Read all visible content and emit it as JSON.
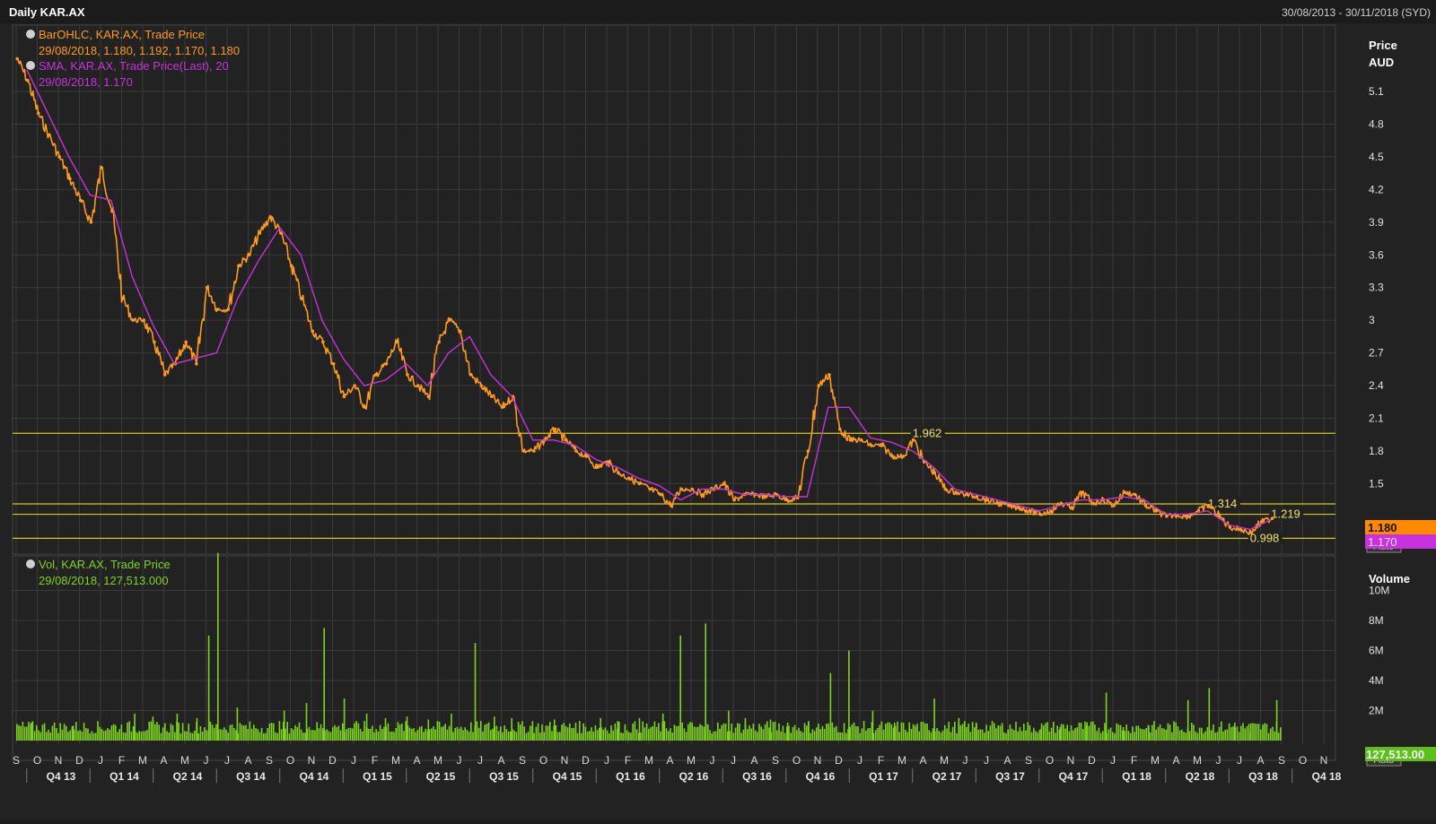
{
  "header": {
    "title": "Daily KAR.AX",
    "date_range": "30/08/2013 - 30/11/2018 (SYD)"
  },
  "price_axis": {
    "title": "Price",
    "unit": "AUD",
    "ticks": [
      "5.1",
      "4.8",
      "4.5",
      "4.2",
      "3.9",
      "3.6",
      "3.3",
      "3",
      "2.7",
      "2.4",
      "2.1",
      "1.8",
      "1.5"
    ],
    "last_price_tag": "1.180",
    "sma_tag": "1.170",
    "auto_label": "Auto"
  },
  "volume_axis": {
    "title": "Volume",
    "ticks": [
      "10M",
      "8M",
      "6M",
      "4M",
      "2M"
    ],
    "last_volume_tag": "127,513.00",
    "auto_label": "Auto"
  },
  "legend": {
    "ohlc_name": "BarOHLC, KAR.AX, Trade Price",
    "ohlc_values": "29/08/2018, 1.180, 1.192, 1.170, 1.180",
    "sma_name": "SMA, KAR.AX, Trade Price(Last),  20",
    "sma_values": "29/08/2018, 1.170",
    "vol_name": "Vol, KAR.AX, Trade Price",
    "vol_values": "29/08/2018, 127,513.000"
  },
  "colors": {
    "background": "#222222",
    "grid": "#3a3a3a",
    "price": "#ff9a1e",
    "sma": "#c832dc",
    "volume": "#7ed321",
    "level_line": "#d9c81a",
    "text": "#e0e0e0"
  },
  "time_axis": {
    "months": [
      "S",
      "O",
      "N",
      "D",
      "J",
      "F",
      "M",
      "A",
      "M",
      "J",
      "J",
      "A",
      "S",
      "O",
      "N",
      "D",
      "J",
      "F",
      "M",
      "A",
      "M",
      "J",
      "J",
      "A",
      "S",
      "O",
      "N",
      "D",
      "J",
      "F",
      "M",
      "A",
      "M",
      "J",
      "J",
      "A",
      "S",
      "O",
      "N",
      "D",
      "J",
      "F",
      "M",
      "A",
      "M",
      "J",
      "J",
      "A",
      "S",
      "O",
      "N",
      "D",
      "J",
      "F",
      "M",
      "A",
      "M",
      "J",
      "J",
      "A",
      "S",
      "O",
      "N"
    ],
    "quarters": [
      "Q4 13",
      "Q1 14",
      "Q2 14",
      "Q3 14",
      "Q4 14",
      "Q1 15",
      "Q2 15",
      "Q3 15",
      "Q4 15",
      "Q1 16",
      "Q2 16",
      "Q3 16",
      "Q4 16",
      "Q1 17",
      "Q2 17",
      "Q3 17",
      "Q4 17",
      "Q1 18",
      "Q2 18",
      "Q3 18",
      "Q4 18"
    ]
  },
  "chart_data": {
    "type": "line",
    "price_panel": {
      "x_label": "",
      "y_label": "Price AUD",
      "ylim": [
        0.9,
        5.5
      ],
      "grid": true,
      "horizontal_levels": [
        {
          "value": 1.962,
          "label": "1.962",
          "label_date": "2017-03"
        },
        {
          "value": 1.314,
          "label": "1.314",
          "label_date": "2018-05"
        },
        {
          "value": 1.219,
          "label": "1.219",
          "label_date": "2018-08"
        },
        {
          "value": 0.998,
          "label": "0.998",
          "label_date": "2018-07"
        }
      ],
      "series": [
        {
          "name": "BarOHLC, KAR.AX, Trade Price",
          "x": [
            "2013-09",
            "2013-09",
            "2013-10",
            "2013-10",
            "2013-11",
            "2013-11",
            "2013-12",
            "2013-12",
            "2014-01",
            "2014-01",
            "2014-02",
            "2014-02",
            "2014-03",
            "2014-03",
            "2014-04",
            "2014-04",
            "2014-05",
            "2014-05",
            "2014-06",
            "2014-06",
            "2014-07",
            "2014-07",
            "2014-08",
            "2014-08",
            "2014-09",
            "2014-09",
            "2014-10",
            "2014-10",
            "2014-11",
            "2014-11",
            "2014-12",
            "2014-12",
            "2015-01",
            "2015-01",
            "2015-02",
            "2015-02",
            "2015-03",
            "2015-03",
            "2015-04",
            "2015-04",
            "2015-05",
            "2015-05",
            "2015-06",
            "2015-06",
            "2015-07",
            "2015-07",
            "2015-08",
            "2015-08",
            "2015-09",
            "2015-09",
            "2015-10",
            "2015-10",
            "2015-11",
            "2015-11",
            "2015-12",
            "2015-12",
            "2016-01",
            "2016-01",
            "2016-02",
            "2016-02",
            "2016-03",
            "2016-03",
            "2016-04",
            "2016-04",
            "2016-05",
            "2016-05",
            "2016-06",
            "2016-06",
            "2016-07",
            "2016-07",
            "2016-08",
            "2016-08",
            "2016-09",
            "2016-09",
            "2016-10",
            "2016-10",
            "2016-11",
            "2016-11",
            "2016-12",
            "2016-12",
            "2017-01",
            "2017-01",
            "2017-02",
            "2017-02",
            "2017-03",
            "2017-03",
            "2017-04",
            "2017-04",
            "2017-05",
            "2017-05",
            "2017-06",
            "2017-06",
            "2017-07",
            "2017-07",
            "2017-08",
            "2017-08",
            "2017-09",
            "2017-09",
            "2017-10",
            "2017-10",
            "2017-11",
            "2017-11",
            "2017-12",
            "2017-12",
            "2018-01",
            "2018-01",
            "2018-02",
            "2018-02",
            "2018-03",
            "2018-03",
            "2018-04",
            "2018-04",
            "2018-05",
            "2018-05",
            "2018-06",
            "2018-06",
            "2018-07",
            "2018-07",
            "2018-08",
            "2018-08"
          ],
          "y": [
            5.4,
            5.2,
            4.9,
            4.7,
            4.5,
            4.3,
            4.1,
            3.9,
            4.4,
            4.0,
            3.2,
            3.0,
            3.0,
            2.8,
            2.5,
            2.6,
            2.8,
            2.6,
            3.3,
            3.1,
            3.1,
            3.5,
            3.6,
            3.8,
            3.95,
            3.8,
            3.5,
            3.2,
            2.9,
            2.8,
            2.6,
            2.3,
            2.4,
            2.2,
            2.5,
            2.6,
            2.8,
            2.5,
            2.4,
            2.3,
            2.8,
            3.0,
            2.9,
            2.5,
            2.4,
            2.3,
            2.2,
            2.3,
            1.8,
            1.8,
            1.9,
            2.0,
            1.9,
            1.8,
            1.75,
            1.65,
            1.7,
            1.6,
            1.55,
            1.5,
            1.45,
            1.4,
            1.3,
            1.45,
            1.45,
            1.4,
            1.45,
            1.5,
            1.35,
            1.4,
            1.4,
            1.38,
            1.4,
            1.35,
            1.37,
            1.8,
            2.4,
            2.5,
            2.0,
            1.9,
            1.9,
            1.85,
            1.85,
            1.75,
            1.75,
            1.9,
            1.7,
            1.6,
            1.45,
            1.42,
            1.4,
            1.38,
            1.35,
            1.32,
            1.3,
            1.28,
            1.25,
            1.22,
            1.25,
            1.32,
            1.28,
            1.42,
            1.32,
            1.35,
            1.3,
            1.42,
            1.4,
            1.3,
            1.25,
            1.2,
            1.21,
            1.2,
            1.25,
            1.3,
            1.2,
            1.1,
            1.08,
            1.05,
            1.15,
            1.18
          ]
        },
        {
          "name": "SMA, KAR.AX, Trade Price(Last), 20",
          "x": [
            "2013-09",
            "2013-10",
            "2013-11",
            "2013-12",
            "2014-01",
            "2014-02",
            "2014-03",
            "2014-04",
            "2014-05",
            "2014-06",
            "2014-07",
            "2014-08",
            "2014-09",
            "2014-10",
            "2014-11",
            "2014-12",
            "2015-01",
            "2015-02",
            "2015-03",
            "2015-04",
            "2015-05",
            "2015-06",
            "2015-07",
            "2015-08",
            "2015-09",
            "2015-10",
            "2015-11",
            "2015-12",
            "2016-01",
            "2016-02",
            "2016-03",
            "2016-04",
            "2016-05",
            "2016-06",
            "2016-07",
            "2016-08",
            "2016-09",
            "2016-10",
            "2016-11",
            "2016-12",
            "2017-01",
            "2017-02",
            "2017-03",
            "2017-04",
            "2017-05",
            "2017-06",
            "2017-07",
            "2017-08",
            "2017-09",
            "2017-10",
            "2017-11",
            "2017-12",
            "2018-01",
            "2018-02",
            "2018-03",
            "2018-04",
            "2018-05",
            "2018-06",
            "2018-07",
            "2018-08"
          ],
          "y": [
            5.3,
            4.9,
            4.5,
            4.15,
            4.1,
            3.4,
            2.95,
            2.6,
            2.65,
            2.7,
            3.2,
            3.55,
            3.85,
            3.6,
            3.0,
            2.65,
            2.4,
            2.45,
            2.6,
            2.4,
            2.7,
            2.85,
            2.5,
            2.3,
            1.9,
            1.9,
            1.85,
            1.72,
            1.65,
            1.55,
            1.48,
            1.35,
            1.45,
            1.45,
            1.4,
            1.4,
            1.38,
            1.38,
            2.2,
            2.2,
            1.92,
            1.88,
            1.8,
            1.65,
            1.45,
            1.4,
            1.35,
            1.3,
            1.25,
            1.3,
            1.35,
            1.35,
            1.38,
            1.35,
            1.22,
            1.22,
            1.25,
            1.12,
            1.08,
            1.17
          ]
        }
      ]
    },
    "volume_panel": {
      "y_label": "Volume",
      "ylim": [
        0,
        11000000
      ],
      "series": [
        {
          "name": "Vol, KAR.AX, Trade Price",
          "x": [
            "2013-09",
            "2013-11",
            "2014-01",
            "2014-02",
            "2014-03",
            "2014-04",
            "2014-05",
            "2014-06",
            "2014-06",
            "2014-07",
            "2014-09",
            "2014-10",
            "2014-11",
            "2014-12",
            "2015-01",
            "2015-02",
            "2015-03",
            "2015-04",
            "2015-05",
            "2015-06",
            "2015-07",
            "2015-08",
            "2015-09",
            "2015-10",
            "2015-11",
            "2015-12",
            "2016-01",
            "2016-02",
            "2016-03",
            "2016-04",
            "2016-05",
            "2016-06",
            "2016-07",
            "2016-08",
            "2016-09",
            "2016-10",
            "2016-11",
            "2016-12",
            "2017-01",
            "2017-02",
            "2017-03",
            "2017-04",
            "2017-05",
            "2017-06",
            "2017-07",
            "2017-08",
            "2017-09",
            "2017-10",
            "2017-11",
            "2017-12",
            "2018-01",
            "2018-02",
            "2018-03",
            "2018-04",
            "2018-05",
            "2018-06",
            "2018-07",
            "2018-08"
          ],
          "y": [
            1200000,
            1000000,
            1100000,
            1800000,
            1600000,
            1800000,
            1500000,
            12500000,
            7000000,
            2200000,
            2000000,
            2500000,
            7500000,
            2800000,
            1800000,
            1500000,
            1600000,
            1400000,
            1800000,
            6500000,
            1600000,
            1500000,
            1300000,
            1400000,
            1200000,
            1500000,
            1300000,
            1500000,
            1800000,
            7000000,
            7800000,
            2000000,
            1500000,
            1400000,
            1200000,
            1300000,
            4500000,
            6000000,
            2000000,
            1200000,
            1000000,
            2800000,
            1500000,
            1200000,
            1000000,
            900000,
            800000,
            900000,
            1000000,
            3200000,
            900000,
            1000000,
            800000,
            2700000,
            3500000,
            1200000,
            600000,
            2700000
          ]
        }
      ]
    }
  }
}
